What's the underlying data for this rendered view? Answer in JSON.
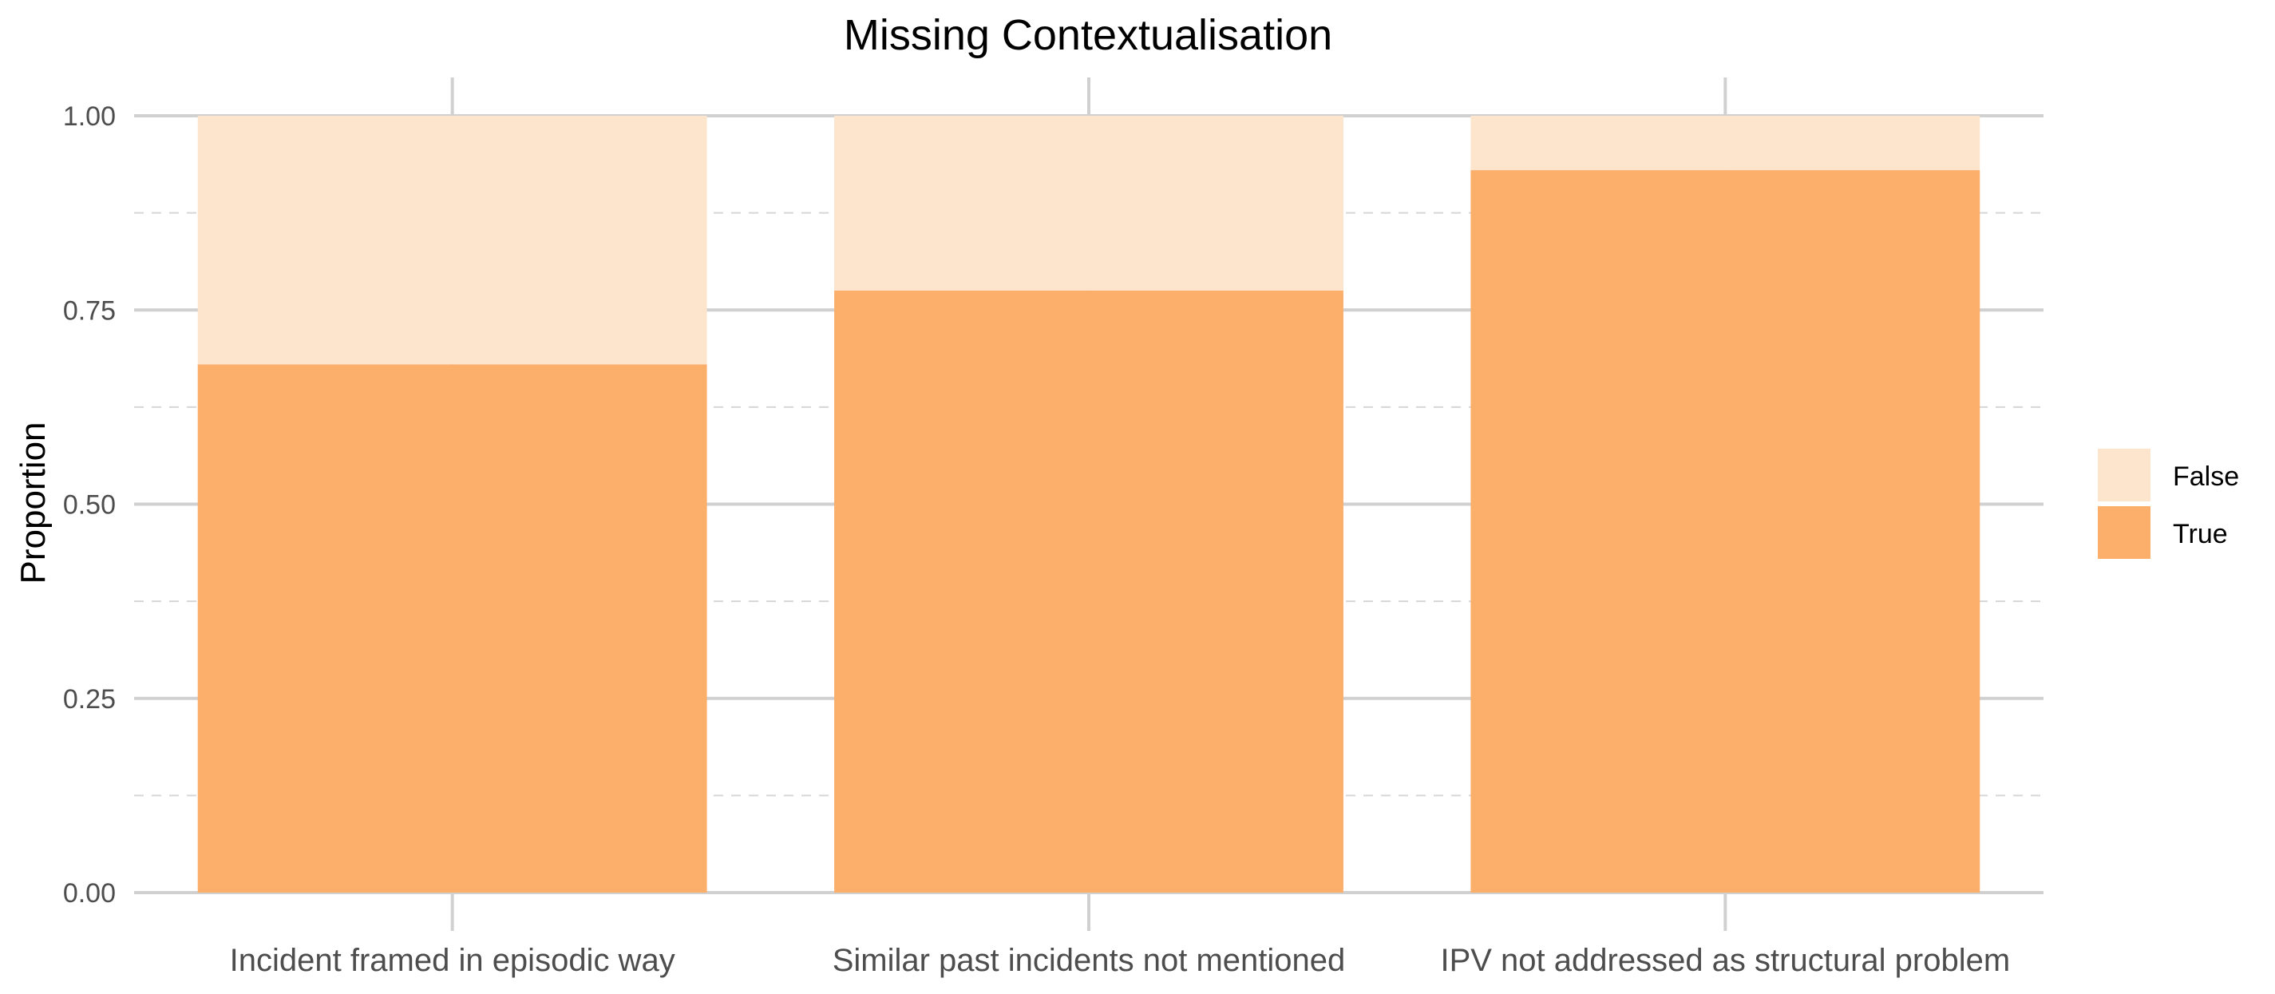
{
  "chart_data": {
    "type": "bar",
    "stacked": true,
    "title": "Missing Contextualisation",
    "xlabel": "",
    "ylabel": "Proportion",
    "ylim": [
      0,
      1
    ],
    "yticks": [
      "0.00",
      "0.25",
      "0.50",
      "0.75",
      "1.00"
    ],
    "grid": true,
    "legend_position": "right",
    "categories": [
      "Incident framed in episodic way",
      "Similar past incidents not mentioned",
      "IPV not addressed as structural problem"
    ],
    "series": [
      {
        "name": "True",
        "color": "#FCAE6B",
        "values": [
          0.68,
          0.775,
          0.93
        ]
      },
      {
        "name": "False",
        "color": "#FDE5CD",
        "values": [
          0.32,
          0.225,
          0.07
        ]
      }
    ],
    "legend_order": [
      "False",
      "True"
    ]
  }
}
